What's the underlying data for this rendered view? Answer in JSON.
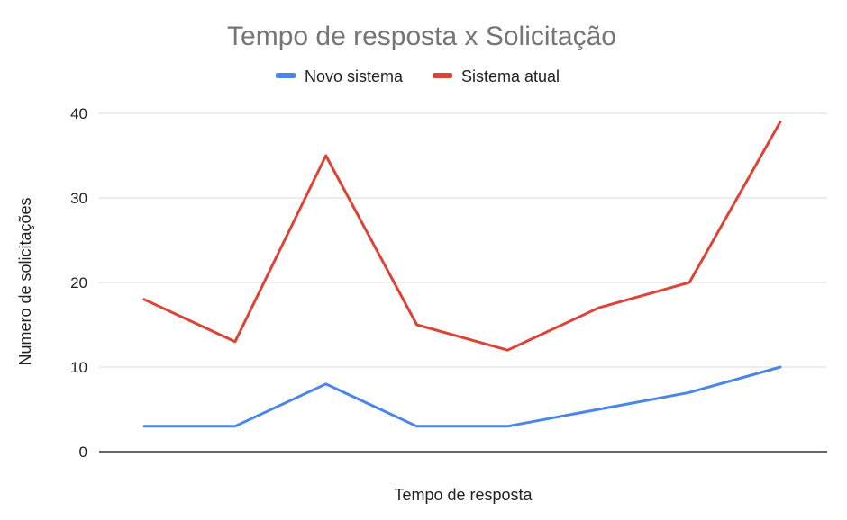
{
  "chart_data": {
    "type": "line",
    "title": "Tempo de resposta x Solicitação",
    "xlabel": "Tempo de resposta",
    "ylabel": "Numero de solicitações",
    "ylim": [
      0,
      40
    ],
    "yticks": [
      "0",
      "10",
      "20",
      "30",
      "40"
    ],
    "grid": true,
    "legend_position": "top",
    "x": [
      1,
      2,
      3,
      4,
      5,
      6,
      7,
      8
    ],
    "series": [
      {
        "name": "Novo sistema",
        "color": "#4A86E8",
        "values": [
          3,
          3,
          8,
          3,
          3,
          5,
          7,
          10
        ]
      },
      {
        "name": "Sistema atual",
        "color": "#DB4437",
        "values": [
          18,
          13,
          35,
          15,
          12,
          17,
          20,
          39
        ]
      }
    ]
  }
}
